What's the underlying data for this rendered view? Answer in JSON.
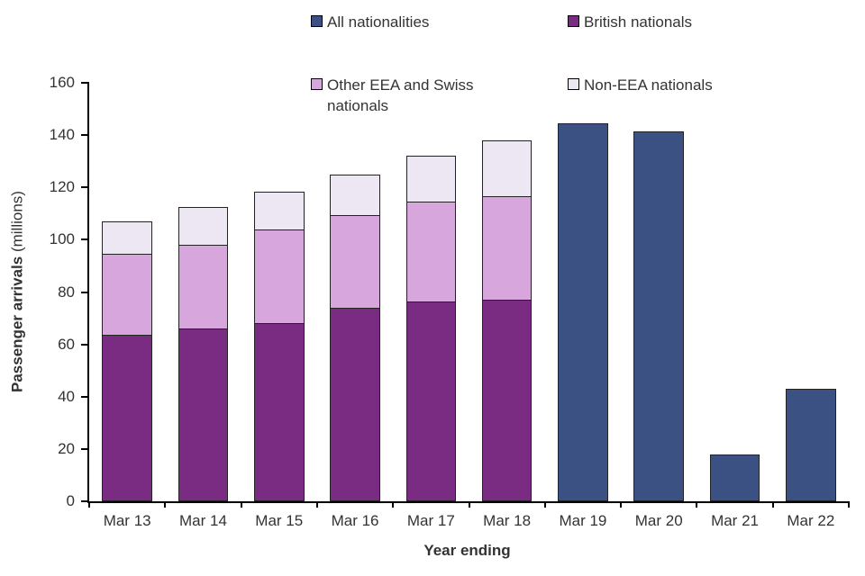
{
  "chart_data": {
    "type": "bar",
    "stacked": true,
    "xlabel": "Year ending",
    "ylabel": "Passenger arrivals (millions)",
    "ylabel_parts": {
      "bold": "Passenger arrivals",
      "normal": " (millions)"
    },
    "ylim": [
      0,
      160
    ],
    "ytick_interval": 20,
    "grid": false,
    "legend_position": "top",
    "categories": [
      "Mar 13",
      "Mar 14",
      "Mar 15",
      "Mar 16",
      "Mar 17",
      "Mar 18",
      "Mar 19",
      "Mar 20",
      "Mar 21",
      "Mar 22"
    ],
    "series": [
      {
        "name": "All nationalities",
        "color": "#3B5183",
        "values": [
          null,
          null,
          null,
          null,
          null,
          null,
          144.5,
          141.5,
          18,
          43
        ]
      },
      {
        "name": "British nationals",
        "color": "#7A2C82",
        "values": [
          63.5,
          66,
          68,
          74,
          76.5,
          77,
          null,
          null,
          null,
          null
        ]
      },
      {
        "name": "Other EEA and Swiss nationals",
        "color": "#D7A6DC",
        "values": [
          31,
          32,
          36,
          35.5,
          38,
          39.5,
          null,
          null,
          null,
          null
        ]
      },
      {
        "name": "Non-EEA nationals",
        "color": "#EDE7F3",
        "values": [
          12.5,
          14.5,
          14.5,
          15.5,
          17.5,
          21.5,
          null,
          null,
          null,
          null
        ]
      }
    ],
    "totals": [
      107,
      112.5,
      118.5,
      125,
      132,
      138,
      144.5,
      141.5,
      18,
      43
    ]
  }
}
